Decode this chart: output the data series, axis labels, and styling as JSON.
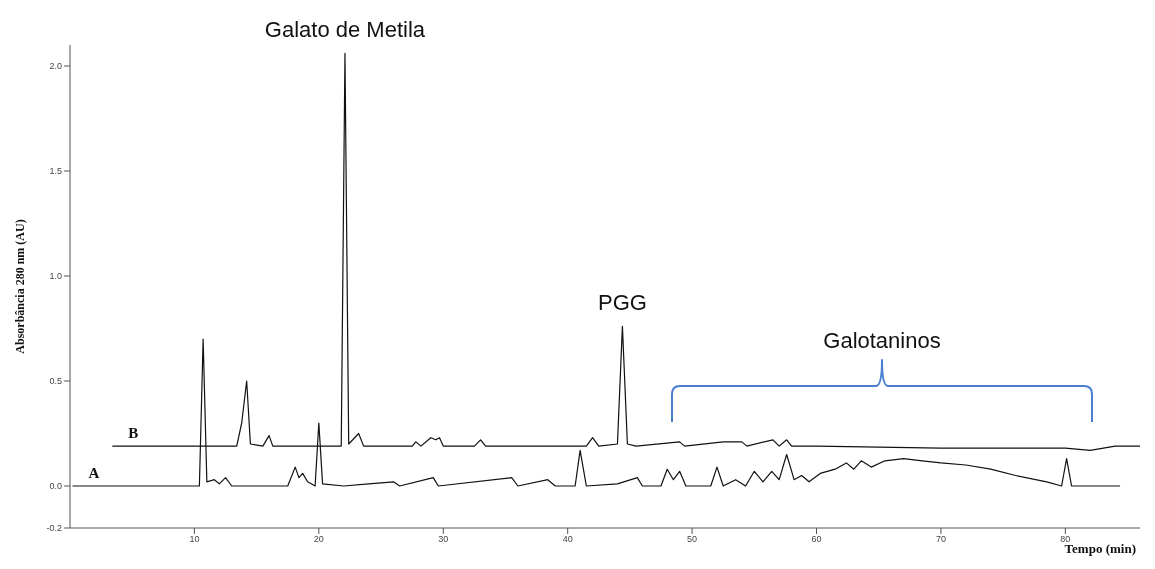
{
  "chart_data": {
    "type": "line",
    "xlabel": "Tempo (min)",
    "ylabel": "Absorbância 280 nm (AU)",
    "xlim": [
      0,
      86
    ],
    "xticks": [
      10,
      20,
      30,
      40,
      50,
      60,
      70,
      80
    ],
    "ylim": [
      -0.2,
      2.1
    ],
    "yticks": [
      {
        "value": -0.2,
        "label": "-0.2"
      },
      {
        "value": 0,
        "label": "0.0"
      },
      {
        "value": 0.5,
        "label": "0.5"
      },
      {
        "value": 1,
        "label": "1.0"
      },
      {
        "value": 1.5,
        "label": "1.5"
      },
      {
        "value": 2,
        "label": "2.0"
      }
    ],
    "series": [
      {
        "name": "B",
        "color": "#111111",
        "x": [
          3.4,
          13.4,
          13.8,
          14.2,
          14.5,
          15.5,
          16.0,
          16.3,
          21.8,
          22.1,
          22.4,
          23.2,
          23.6,
          27.5,
          27.8,
          28.2,
          29.0,
          29.4,
          29.7,
          30.0,
          32.5,
          33.0,
          33.4,
          41.5,
          42.0,
          42.5,
          44.0,
          44.4,
          44.8,
          45.5,
          49.0,
          49.4,
          52.5,
          54.0,
          54.4,
          56.5,
          57.0,
          57.6,
          58.0,
          60.0,
          70.0,
          80.0,
          82.0,
          84.0,
          86.0
        ],
        "values": [
          0.19,
          0.19,
          0.3,
          0.5,
          0.2,
          0.19,
          0.24,
          0.19,
          0.19,
          2.06,
          0.2,
          0.25,
          0.19,
          0.19,
          0.21,
          0.19,
          0.23,
          0.22,
          0.23,
          0.19,
          0.19,
          0.22,
          0.19,
          0.19,
          0.23,
          0.19,
          0.2,
          0.76,
          0.2,
          0.19,
          0.21,
          0.19,
          0.21,
          0.21,
          0.19,
          0.22,
          0.19,
          0.22,
          0.19,
          0.19,
          0.18,
          0.18,
          0.17,
          0.19,
          0.19
        ]
      },
      {
        "name": "A",
        "color": "#111111",
        "x": [
          0.2,
          9.0,
          10.4,
          10.7,
          11.0,
          11.6,
          12.0,
          12.5,
          13.0,
          17.5,
          18.1,
          18.4,
          18.7,
          19.1,
          19.7,
          20.0,
          20.3,
          22.0,
          24.0,
          26.0,
          26.5,
          29.2,
          29.6,
          35.5,
          36.0,
          38.4,
          39.0,
          40.6,
          41.0,
          41.5,
          44.0,
          45.6,
          46.0,
          47.5,
          48.0,
          48.5,
          49.0,
          49.5,
          51.5,
          52.0,
          52.5,
          53.5,
          54.3,
          55.0,
          55.7,
          56.4,
          57.0,
          57.6,
          58.2,
          58.8,
          59.4,
          60.3,
          61.5,
          62.4,
          63.0,
          63.6,
          64.4,
          65.5,
          67.0,
          68.5,
          70.0,
          72.0,
          74.0,
          76.0,
          78.5,
          79.7,
          80.1,
          80.5,
          82.0,
          84.4
        ],
        "values": [
          0.0,
          0.0,
          0.0,
          0.7,
          0.02,
          0.03,
          0.01,
          0.04,
          0.0,
          0.0,
          0.09,
          0.04,
          0.06,
          0.02,
          0.0,
          0.3,
          0.01,
          0.0,
          0.01,
          0.02,
          0.0,
          0.04,
          0.0,
          0.04,
          0.0,
          0.03,
          0.0,
          0.0,
          0.17,
          0.0,
          0.01,
          0.04,
          0.0,
          0.0,
          0.08,
          0.03,
          0.07,
          0.0,
          0.0,
          0.09,
          0.0,
          0.03,
          0.0,
          0.07,
          0.02,
          0.07,
          0.03,
          0.15,
          0.03,
          0.05,
          0.02,
          0.06,
          0.08,
          0.11,
          0.08,
          0.12,
          0.09,
          0.12,
          0.13,
          0.12,
          0.11,
          0.1,
          0.08,
          0.05,
          0.02,
          0.0,
          0.13,
          0.0,
          0.0,
          0.0
        ]
      }
    ],
    "annotations": [
      {
        "text": "Galato de Metila",
        "x": 22.1,
        "y": 2.06
      },
      {
        "text": "PGG",
        "x": 44.4,
        "y": 0.76
      },
      "Galotaninos"
    ]
  }
}
